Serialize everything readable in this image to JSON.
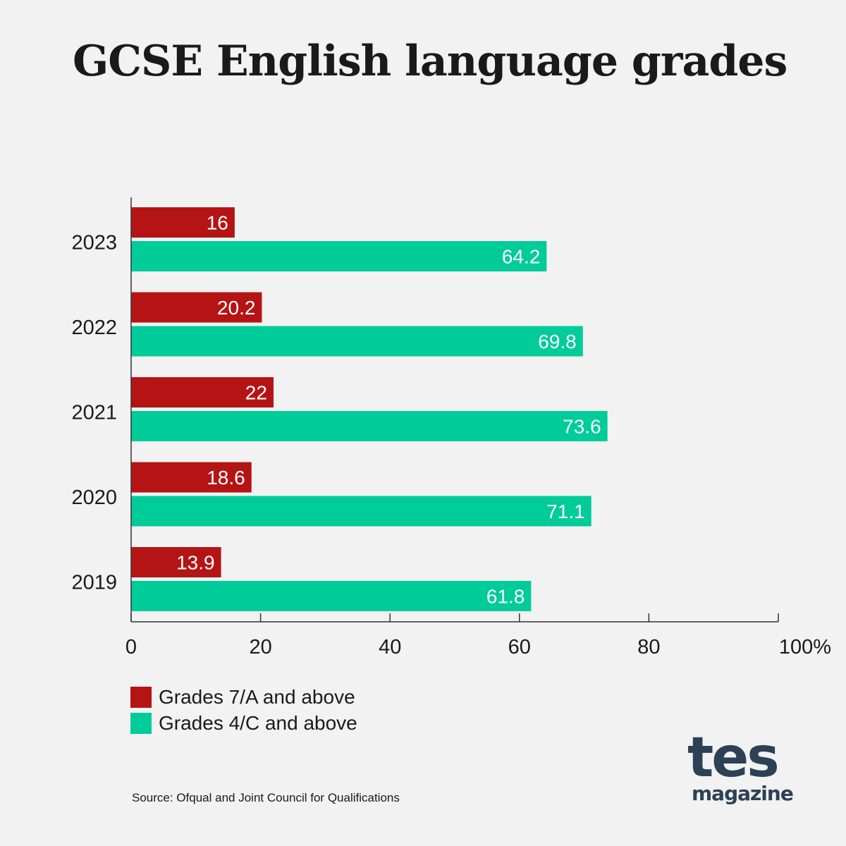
{
  "title": "GCSE English language grades",
  "source": "Source: Ofqual and Joint Council for Qualifications",
  "logo": {
    "main": "tes",
    "sub": "magazine"
  },
  "colors": {
    "series1": "#b51414",
    "series2": "#00cc99",
    "axis": "#333333",
    "background": "#f2f2f2"
  },
  "chart_data": {
    "type": "bar",
    "orientation": "horizontal",
    "categories": [
      "2023",
      "2022",
      "2021",
      "2020",
      "2019"
    ],
    "series": [
      {
        "name": "Grades 7/A and above",
        "values": [
          16,
          20.2,
          22,
          18.6,
          13.9
        ],
        "labels": [
          "16",
          "20.2",
          "22",
          "18.6",
          "13.9"
        ]
      },
      {
        "name": "Grades 4/C and above",
        "values": [
          64.2,
          69.8,
          73.6,
          71.1,
          61.8
        ],
        "labels": [
          "64.2",
          "69.8",
          "73.6",
          "71.1",
          "61.8"
        ]
      }
    ],
    "xlim": [
      0,
      100
    ],
    "xticks": [
      0,
      20,
      40,
      60,
      80,
      100
    ],
    "xtick_labels": [
      "0",
      "20",
      "40",
      "60",
      "80",
      "100%"
    ],
    "grid": false,
    "legend_position": "bottom-left"
  }
}
